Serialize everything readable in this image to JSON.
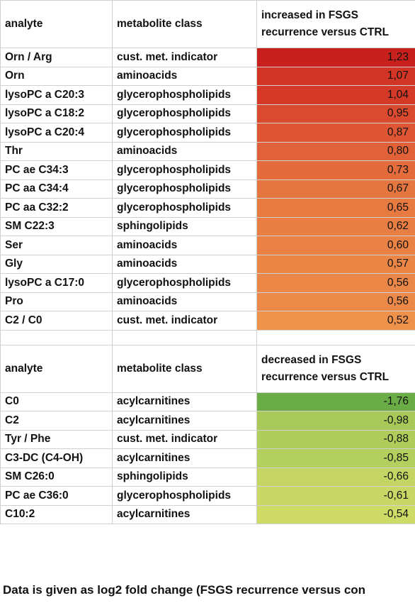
{
  "table": {
    "increased_header": {
      "col1": "analyte",
      "col2": "metabolite class",
      "col3": "increased in  FSGS recurrence versus CTRL"
    },
    "increased_rows": [
      {
        "analyte": "Orn / Arg",
        "class": "cust. met. indicator",
        "value": "1,23",
        "color": "#c8201c"
      },
      {
        "analyte": "Orn",
        "class": "aminoacids",
        "value": "1,07",
        "color": "#d23425"
      },
      {
        "analyte": "lysoPC a C20:3",
        "class": "glycerophospholipids",
        "value": "1,04",
        "color": "#d53a28"
      },
      {
        "analyte": "lysoPC a C18:2",
        "class": "glycerophospholipids",
        "value": "0,95",
        "color": "#da4a2f"
      },
      {
        "analyte": "lysoPC a C20:4",
        "class": "glycerophospholipids",
        "value": "0,87",
        "color": "#de5634"
      },
      {
        "analyte": "Thr",
        "class": "aminoacids",
        "value": "0,80",
        "color": "#e16238"
      },
      {
        "analyte": "PC ae C34:3",
        "class": "glycerophospholipids",
        "value": "0,73",
        "color": "#e46c3c"
      },
      {
        "analyte": "PC aa C34:4",
        "class": "glycerophospholipids",
        "value": "0,67",
        "color": "#e6763f"
      },
      {
        "analyte": "PC aa C32:2",
        "class": "glycerophospholipids",
        "value": "0,65",
        "color": "#e77a41"
      },
      {
        "analyte": "SM C22:3",
        "class": "sphingolipids",
        "value": "0,62",
        "color": "#e87e43"
      },
      {
        "analyte": "Ser",
        "class": "aminoacids",
        "value": "0,60",
        "color": "#e98244"
      },
      {
        "analyte": "Gly",
        "class": "aminoacids",
        "value": "0,57",
        "color": "#ea8646"
      },
      {
        "analyte": "lysoPC a C17:0",
        "class": "glycerophospholipids",
        "value": "0,56",
        "color": "#eb8847"
      },
      {
        "analyte": "Pro",
        "class": "aminoacids",
        "value": "0,56",
        "color": "#eb8a48"
      },
      {
        "analyte": "C2 / C0",
        "class": "cust. met. indicator",
        "value": "0,52",
        "color": "#ed914b"
      }
    ],
    "decreased_header": {
      "col1": "analyte",
      "col2": "metabolite class",
      "col3": "decreased in  FSGS recurrence versus CTRL"
    },
    "decreased_rows": [
      {
        "analyte": "C0",
        "class": "acylcarnitines",
        "value": "-1,76",
        "color": "#6aac46"
      },
      {
        "analyte": "C2",
        "class": "acylcarnitines",
        "value": "-0,98",
        "color": "#a8c95a"
      },
      {
        "analyte": "Tyr / Phe",
        "class": "cust. met. indicator",
        "value": "-0,88",
        "color": "#b0cd5c"
      },
      {
        "analyte": "C3-DC (C4-OH)",
        "class": "acylcarnitines",
        "value": "-0,85",
        "color": "#b3cf5e"
      },
      {
        "analyte": "SM C26:0",
        "class": "sphingolipids",
        "value": "-0,66",
        "color": "#c4d563"
      },
      {
        "analyte": "PC ae C36:0",
        "class": "glycerophospholipids",
        "value": "-0,61",
        "color": "#c8d765"
      },
      {
        "analyte": "C10:2",
        "class": "acylcarnitines",
        "value": "-0,54",
        "color": "#cedb67"
      }
    ]
  },
  "footnote": "Data is given as log2 fold change (FSGS recurrence versus con"
}
